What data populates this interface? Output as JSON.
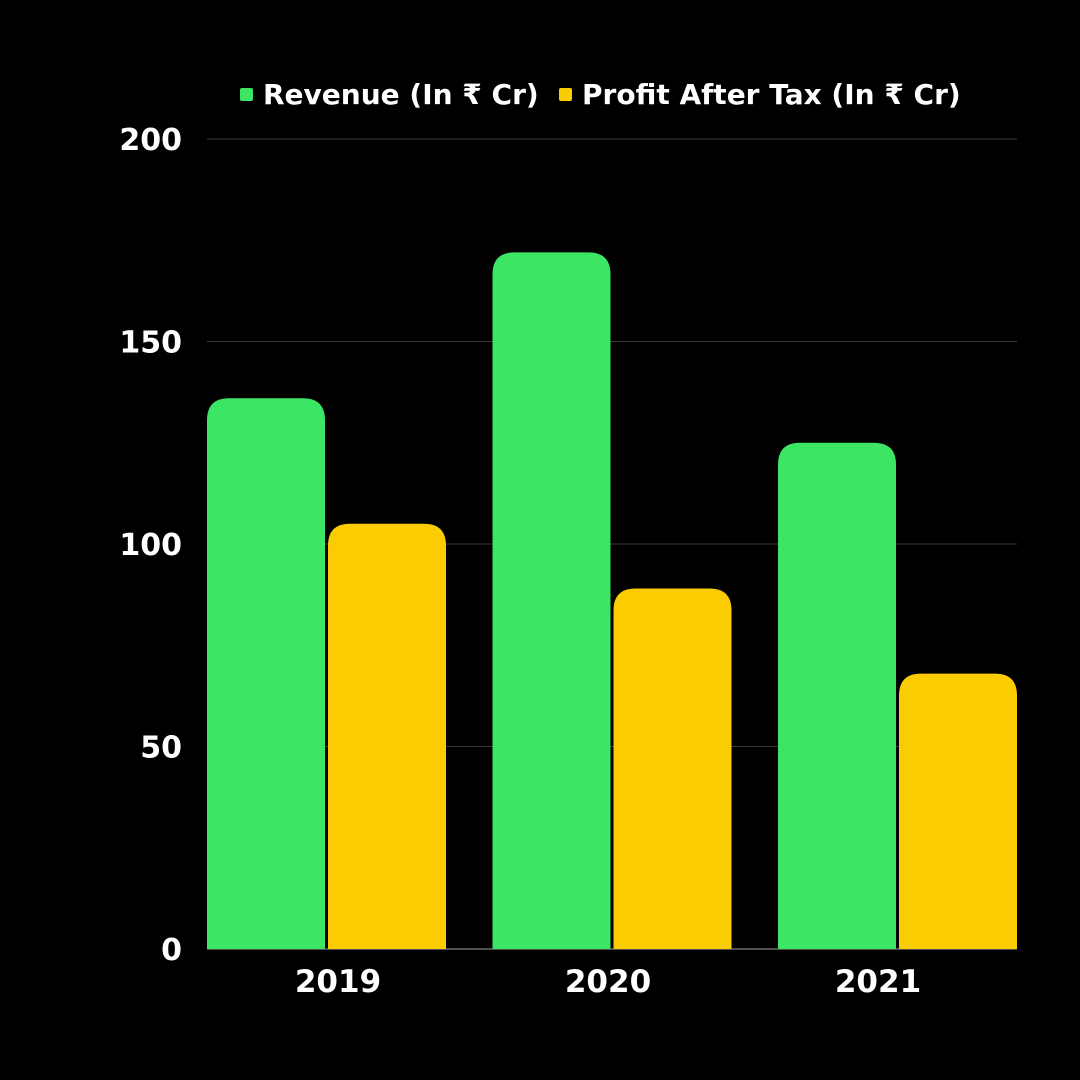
{
  "chart_data": {
    "type": "bar",
    "categories": [
      "2019",
      "2020",
      "2021"
    ],
    "series": [
      {
        "name": "Revenue (In ₹ Cr)",
        "values": [
          136,
          172,
          125
        ],
        "color": "#3de564"
      },
      {
        "name": "Profit After Tax (In ₹ Cr)",
        "values": [
          105,
          89,
          68
        ],
        "color": "#fccc02"
      }
    ],
    "title": "",
    "xlabel": "",
    "ylabel": "",
    "ylim": [
      0,
      200
    ],
    "yticks": [
      "0",
      "50",
      "100",
      "150",
      "200"
    ],
    "grid": true,
    "legend_position": "top",
    "background": "#000000"
  }
}
